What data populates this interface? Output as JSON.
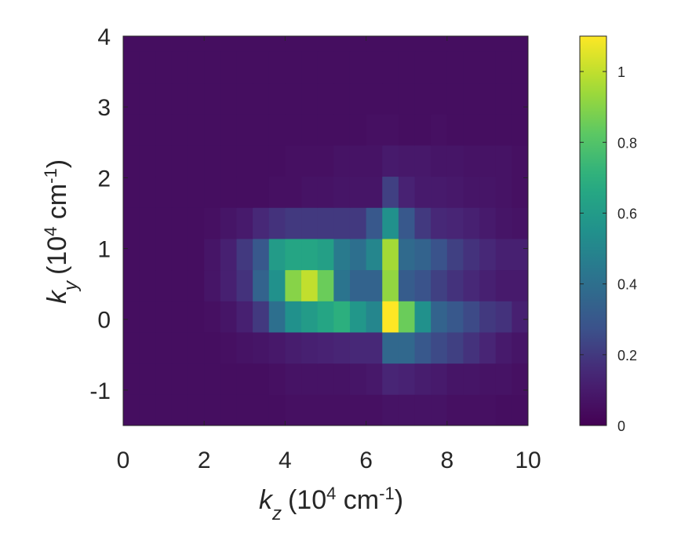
{
  "chart_data": {
    "type": "heatmap",
    "xlabel": {
      "var": "k",
      "sub": "z",
      "unit_pre": "(10",
      "unit_exp": "4",
      "unit_mid": " cm",
      "unit_exp2": "-1",
      "unit_post": ")"
    },
    "ylabel": {
      "var": "k",
      "sub": "y",
      "unit_pre": "(10",
      "unit_exp": "4",
      "unit_mid": " cm",
      "unit_exp2": "-1",
      "unit_post": ")"
    },
    "xlim": [
      0,
      10
    ],
    "ylim": [
      -1.5,
      4
    ],
    "x_ticks": [
      0,
      2,
      4,
      6,
      8,
      10
    ],
    "x_tick_labels": [
      "0",
      "2",
      "4",
      "6",
      "8",
      "10"
    ],
    "y_ticks": [
      -1,
      0,
      1,
      2,
      3,
      4
    ],
    "y_tick_labels": [
      "-1",
      "0",
      "1",
      "2",
      "3",
      "4"
    ],
    "colorbar": {
      "colormap": "viridis",
      "range": [
        0,
        1.1
      ],
      "ticks": [
        0,
        0.2,
        0.4,
        0.6,
        0.8,
        1
      ],
      "tick_labels": [
        "0",
        "0.2",
        "0.4",
        "0.6",
        "0.8",
        "1"
      ]
    },
    "grid": {
      "x_start": 0,
      "dx": 0.4,
      "nx": 25,
      "y_start": -1.5,
      "dy": 0.44,
      "ny": 12
    },
    "cells": [
      [
        0.05,
        0.05,
        0.05,
        0.05,
        0.05,
        0.05,
        0.05,
        0.05,
        0.05,
        0.05,
        0.06,
        0.06,
        0.06,
        0.06,
        0.06,
        0.06,
        0.07,
        0.07,
        0.07,
        0.07,
        0.06,
        0.06,
        0.06,
        0.05,
        0.05
      ],
      [
        0.05,
        0.05,
        0.05,
        0.05,
        0.05,
        0.05,
        0.05,
        0.05,
        0.05,
        0.06,
        0.07,
        0.07,
        0.07,
        0.07,
        0.08,
        0.09,
        0.14,
        0.13,
        0.11,
        0.1,
        0.08,
        0.08,
        0.07,
        0.07,
        0.06
      ],
      [
        0.05,
        0.05,
        0.05,
        0.05,
        0.05,
        0.05,
        0.06,
        0.07,
        0.08,
        0.09,
        0.11,
        0.12,
        0.13,
        0.14,
        0.15,
        0.15,
        0.37,
        0.37,
        0.3,
        0.25,
        0.22,
        0.18,
        0.14,
        0.1,
        0.08
      ],
      [
        0.05,
        0.05,
        0.05,
        0.05,
        0.05,
        0.06,
        0.08,
        0.12,
        0.2,
        0.4,
        0.55,
        0.6,
        0.65,
        0.7,
        0.58,
        0.5,
        1.1,
        0.85,
        0.55,
        0.35,
        0.3,
        0.25,
        0.2,
        0.18,
        0.12
      ],
      [
        0.05,
        0.05,
        0.05,
        0.05,
        0.05,
        0.08,
        0.12,
        0.18,
        0.35,
        0.55,
        0.9,
        1.0,
        0.85,
        0.42,
        0.35,
        0.35,
        0.92,
        0.32,
        0.28,
        0.22,
        0.18,
        0.15,
        0.12,
        0.1,
        0.1
      ],
      [
        0.05,
        0.05,
        0.05,
        0.05,
        0.05,
        0.08,
        0.12,
        0.2,
        0.3,
        0.6,
        0.65,
        0.65,
        0.62,
        0.45,
        0.4,
        0.5,
        0.95,
        0.38,
        0.35,
        0.28,
        0.22,
        0.18,
        0.15,
        0.12,
        0.12
      ],
      [
        0.05,
        0.05,
        0.05,
        0.05,
        0.05,
        0.06,
        0.08,
        0.1,
        0.15,
        0.18,
        0.2,
        0.2,
        0.2,
        0.2,
        0.2,
        0.3,
        0.55,
        0.3,
        0.2,
        0.15,
        0.14,
        0.12,
        0.1,
        0.08,
        0.07
      ],
      [
        0.05,
        0.05,
        0.05,
        0.05,
        0.05,
        0.05,
        0.05,
        0.05,
        0.05,
        0.06,
        0.06,
        0.07,
        0.07,
        0.08,
        0.08,
        0.08,
        0.22,
        0.13,
        0.1,
        0.1,
        0.09,
        0.08,
        0.08,
        0.07,
        0.06
      ],
      [
        0.05,
        0.05,
        0.05,
        0.05,
        0.05,
        0.05,
        0.05,
        0.05,
        0.05,
        0.05,
        0.06,
        0.06,
        0.06,
        0.07,
        0.07,
        0.07,
        0.1,
        0.09,
        0.09,
        0.08,
        0.08,
        0.07,
        0.07,
        0.07,
        0.06
      ],
      [
        0.05,
        0.05,
        0.05,
        0.05,
        0.05,
        0.05,
        0.05,
        0.05,
        0.05,
        0.05,
        0.05,
        0.05,
        0.05,
        0.05,
        0.05,
        0.06,
        0.06,
        0.05,
        0.05,
        0.06,
        0.05,
        0.05,
        0.05,
        0.05,
        0.05
      ],
      [
        0.05,
        0.05,
        0.05,
        0.05,
        0.05,
        0.05,
        0.05,
        0.05,
        0.05,
        0.05,
        0.05,
        0.05,
        0.05,
        0.05,
        0.05,
        0.05,
        0.05,
        0.05,
        0.05,
        0.05,
        0.05,
        0.05,
        0.05,
        0.05,
        0.05
      ],
      [
        0.05,
        0.05,
        0.05,
        0.05,
        0.05,
        0.05,
        0.05,
        0.05,
        0.05,
        0.05,
        0.05,
        0.05,
        0.05,
        0.05,
        0.05,
        0.05,
        0.05,
        0.05,
        0.05,
        0.05,
        0.05,
        0.05,
        0.05,
        0.05,
        0.05
      ]
    ]
  }
}
